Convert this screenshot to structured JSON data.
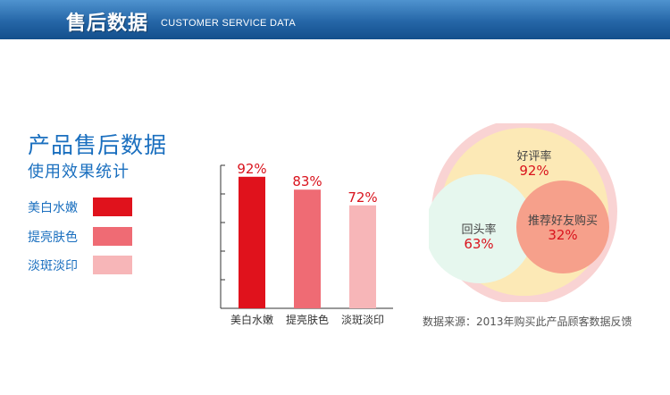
{
  "header": {
    "title": "售后数据",
    "subtitle": "CUSTOMER SERVICE DATA",
    "color": "#2566a7"
  },
  "section": {
    "title": "产品售后数据",
    "subtitle": "使用效果统计"
  },
  "legend": [
    {
      "label": "美白水嫩",
      "color": "#e0121c"
    },
    {
      "label": "提亮肤色",
      "color": "#ef6b74"
    },
    {
      "label": "淡斑淡印",
      "color": "#f7b6b8"
    }
  ],
  "chart_data": [
    {
      "type": "bar",
      "categories": [
        "美白水嫩",
        "提亮肤色",
        "淡斑淡印"
      ],
      "values": [
        92,
        83,
        72
      ],
      "value_labels": [
        "92%",
        "83%",
        "72%"
      ],
      "colors": [
        "#e0121c",
        "#ef6b74",
        "#f7b6b8"
      ],
      "ylim": [
        0,
        100
      ],
      "grid": false
    },
    {
      "type": "venn",
      "sets": [
        {
          "label": "好评率",
          "value": "92%",
          "color": "#fce9b6"
        },
        {
          "label": "回头率",
          "value": "63%",
          "color": "#e6f7ee"
        },
        {
          "label": "推荐好友购买",
          "value": "32%",
          "color": "#f6a08b"
        }
      ],
      "outer_ring_color": "#f9d3d3",
      "value_color": "#d9131d"
    }
  ],
  "source": "数据来源：2013年购买此产品顾客数据反馈"
}
